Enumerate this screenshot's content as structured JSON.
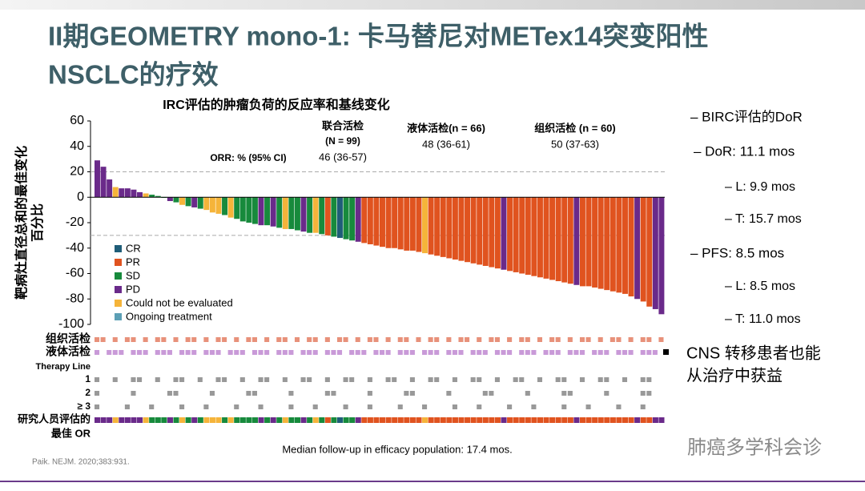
{
  "slide": {
    "title_lines": [
      "II期GEOMETRY mono-1: 卡马替尼对METex14突变阳性",
      "NSCLC的疗效"
    ],
    "side_items": [
      "– BIRC评估的DoR",
      "–  DoR: 11.1 mos",
      "– L: 9.9 mos",
      "– T: 15.7 mos",
      "– PFS: 8.5 mos",
      "– L: 8.5 mos",
      "– T: 11.0 mos"
    ],
    "cns_lines": [
      "CNS 转移患者也能",
      "从治疗中获益"
    ],
    "footnote": "Median follow-up in efficacy population: 17.4 mos.",
    "reference": "Paik. NEJM. 2020;383:931.",
    "watermark": "肺癌多学科会诊"
  },
  "chart_data": {
    "type": "waterfall",
    "title": "IRC评估的肿瘤负荷的反应率和基线变化",
    "y_label_lines": [
      "靶病灶直径总和的最佳变化",
      "百分比"
    ],
    "annotations": [
      "ORR: % (95% CI)",
      "联合活检",
      "(N = 99)",
      "46 (36-57)",
      "液体活检(n = 66)",
      "48 (36-61)",
      "组织活检 (n = 60)",
      "50 (37-63)"
    ],
    "legend": [
      {
        "name": "CR",
        "color": "#1f5d78"
      },
      {
        "name": "PR",
        "color": "#e0531f"
      },
      {
        "name": "SD",
        "color": "#178a3c"
      },
      {
        "name": "PD",
        "color": "#6a2a8a"
      },
      {
        "name": "Could not be evaluated",
        "color": "#f5b43a"
      },
      {
        "name": "Ongoing treatment",
        "color": "#5c9fb5"
      }
    ],
    "values": [
      29,
      24,
      14,
      8,
      7,
      7,
      6,
      4,
      3,
      2,
      1,
      0,
      -3,
      -4,
      -6,
      -7,
      -8,
      -9,
      -10,
      -12,
      -13,
      -14,
      -16,
      -17,
      -19,
      -20,
      -21,
      -22,
      -22,
      -23,
      -24,
      -25,
      -25,
      -26,
      -27,
      -28,
      -28,
      -29,
      -30,
      -31,
      -32,
      -33,
      -34,
      -35,
      -36,
      -37,
      -38,
      -39,
      -40,
      -40,
      -41,
      -42,
      -42,
      -43,
      -44,
      -45,
      -46,
      -47,
      -48,
      -49,
      -50,
      -51,
      -52,
      -53,
      -54,
      -55,
      -56,
      -57,
      -58,
      -59,
      -60,
      -61,
      -62,
      -63,
      -64,
      -65,
      -66,
      -67,
      -68,
      -69,
      -70,
      -70,
      -71,
      -72,
      -73,
      -74,
      -75,
      -76,
      -78,
      -80,
      -82,
      -86,
      -88,
      -92
    ],
    "responses": [
      3,
      3,
      3,
      4,
      3,
      3,
      3,
      3,
      4,
      2,
      2,
      2,
      3,
      2,
      4,
      2,
      3,
      2,
      4,
      4,
      4,
      2,
      4,
      2,
      2,
      2,
      2,
      3,
      2,
      3,
      2,
      4,
      2,
      2,
      3,
      2,
      4,
      2,
      1,
      2,
      0,
      2,
      2,
      3,
      1,
      1,
      1,
      1,
      1,
      1,
      1,
      1,
      1,
      1,
      4,
      1,
      1,
      1,
      1,
      1,
      1,
      1,
      1,
      1,
      1,
      1,
      1,
      3,
      1,
      1,
      1,
      1,
      1,
      1,
      1,
      1,
      1,
      1,
      1,
      3,
      1,
      1,
      1,
      1,
      1,
      1,
      1,
      1,
      1,
      3,
      1,
      1,
      3,
      3
    ],
    "ylim": [
      -100,
      60
    ],
    "yticks": [
      60,
      40,
      20,
      0,
      -20,
      -40,
      -60,
      -80,
      -100
    ],
    "reference_lines": [
      20,
      -30
    ],
    "row_labels": [
      "组织活检",
      "液体活检",
      "Therapy Line",
      "1",
      "2",
      "≥ 3",
      "研究人员评估的",
      "最佳 OR"
    ]
  }
}
